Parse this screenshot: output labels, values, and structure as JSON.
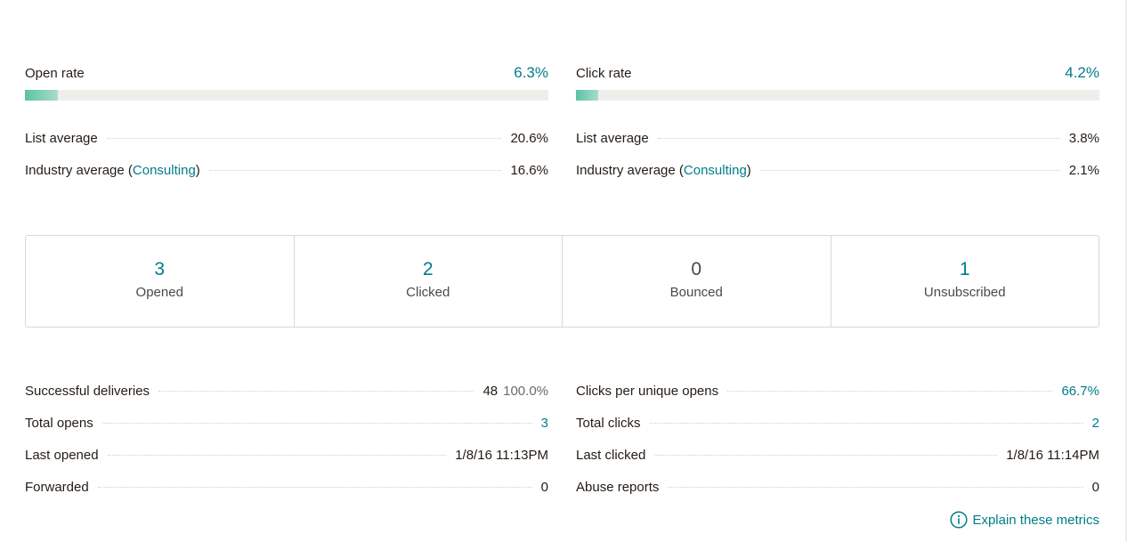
{
  "open_rate": {
    "title": "Open rate",
    "value": "6.3%",
    "fill_percent": 6.3,
    "list_average_label": "List average",
    "list_average_value": "20.6%",
    "industry_label_prefix": "Industry average (",
    "industry_link": "Consulting",
    "industry_label_suffix": ")",
    "industry_value": "16.6%"
  },
  "click_rate": {
    "title": "Click rate",
    "value": "4.2%",
    "fill_percent": 4.2,
    "list_average_label": "List average",
    "list_average_value": "3.8%",
    "industry_label_prefix": "Industry average (",
    "industry_link": "Consulting",
    "industry_label_suffix": ")",
    "industry_value": "2.1%"
  },
  "stats": [
    {
      "number": "3",
      "label": "Opened"
    },
    {
      "number": "2",
      "label": "Clicked"
    },
    {
      "number": "0",
      "label": "Bounced"
    },
    {
      "number": "1",
      "label": "Unsubscribed"
    }
  ],
  "details_left": {
    "successful_deliveries_label": "Successful deliveries",
    "successful_deliveries_value": "48",
    "successful_deliveries_pct": "100.0%",
    "total_opens_label": "Total opens",
    "total_opens_value": "3",
    "last_opened_label": "Last opened",
    "last_opened_value": "1/8/16 11:13PM",
    "forwarded_label": "Forwarded",
    "forwarded_value": "0"
  },
  "details_right": {
    "clicks_per_unique_opens_label": "Clicks per unique opens",
    "clicks_per_unique_opens_value": "66.7%",
    "total_clicks_label": "Total clicks",
    "total_clicks_value": "2",
    "last_clicked_label": "Last clicked",
    "last_clicked_value": "1/8/16 11:14PM",
    "abuse_reports_label": "Abuse reports",
    "abuse_reports_value": "0"
  },
  "explain_link": "Explain these metrics",
  "colors": {
    "accent": "#007c89",
    "bar_fill": "#5cc2a6",
    "bar_track": "#efeeea",
    "text": "#241c15"
  }
}
